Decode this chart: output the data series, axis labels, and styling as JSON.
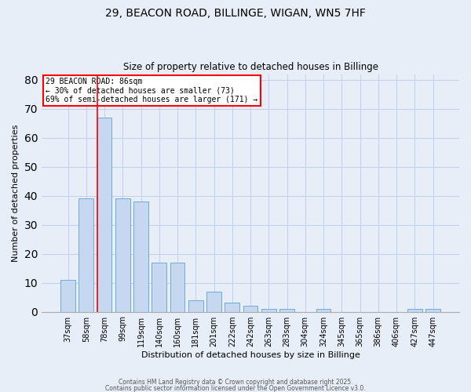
{
  "title_line1": "29, BEACON ROAD, BILLINGE, WIGAN, WN5 7HF",
  "title_line2": "Size of property relative to detached houses in Billinge",
  "xlabel": "Distribution of detached houses by size in Billinge",
  "ylabel": "Number of detached properties",
  "categories": [
    "37sqm",
    "58sqm",
    "78sqm",
    "99sqm",
    "119sqm",
    "140sqm",
    "160sqm",
    "181sqm",
    "201sqm",
    "222sqm",
    "242sqm",
    "263sqm",
    "283sqm",
    "304sqm",
    "324sqm",
    "345sqm",
    "365sqm",
    "386sqm",
    "406sqm",
    "427sqm",
    "447sqm"
  ],
  "values": [
    11,
    39,
    67,
    39,
    38,
    17,
    17,
    4,
    7,
    3,
    2,
    1,
    1,
    0,
    1,
    0,
    0,
    0,
    0,
    1,
    1
  ],
  "bar_color": "#c5d8f0",
  "bar_edge_color": "#6faad6",
  "red_line_index": 2,
  "red_line_color": "red",
  "annotation_text": "29 BEACON ROAD: 86sqm\n← 30% of detached houses are smaller (73)\n69% of semi-detached houses are larger (171) →",
  "annotation_box_facecolor": "white",
  "annotation_box_edgecolor": "red",
  "ylim": [
    0,
    82
  ],
  "yticks": [
    0,
    10,
    20,
    30,
    40,
    50,
    60,
    70,
    80
  ],
  "grid_color": "#c0cfe8",
  "bg_color": "#e8eef8",
  "footer_line1": "Contains HM Land Registry data © Crown copyright and database right 2025.",
  "footer_line2": "Contains public sector information licensed under the Open Government Licence v3.0."
}
